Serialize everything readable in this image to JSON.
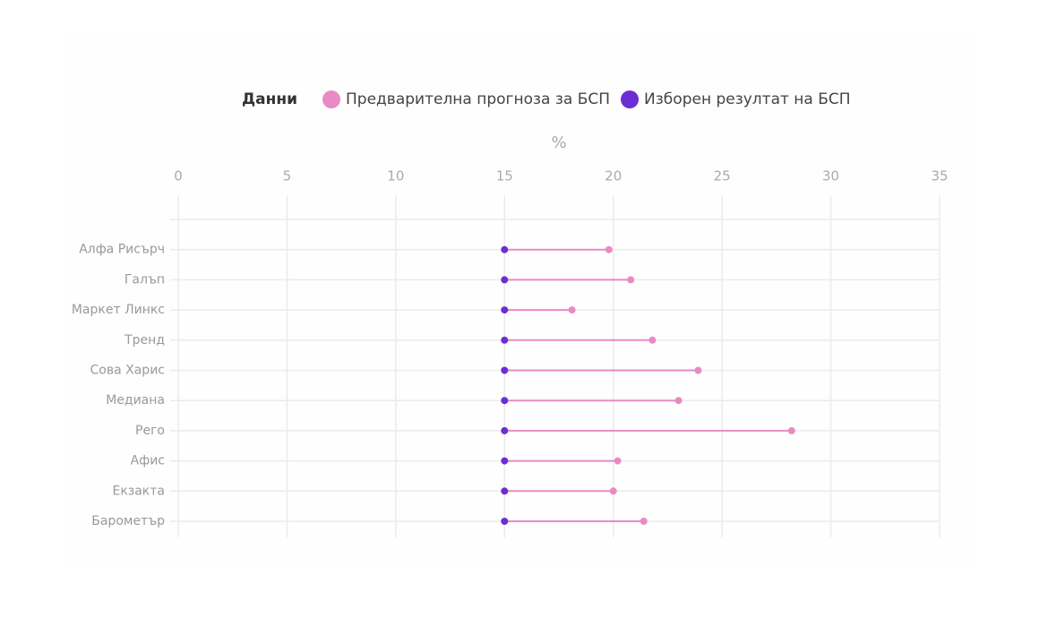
{
  "chart_data": {
    "type": "dumbbell",
    "legend_title": "Данни",
    "x_label": "%",
    "categories": [
      null,
      "Алфа Рисърч",
      "Галъп",
      "Маркет Линкс",
      "Тренд",
      "Сова Харис",
      "Медиана",
      "Рего",
      "Афис",
      "Екзакта",
      "Барометър"
    ],
    "series": [
      {
        "name": "Предварителна прогноза за БСП",
        "color": "#e88bc4",
        "values": [
          null,
          19.8,
          20.8,
          18.1,
          21.8,
          23.9,
          23.0,
          28.2,
          20.2,
          20.0,
          21.4
        ]
      },
      {
        "name": "Изборен резултат на БСП",
        "color": "#6a2fd4",
        "values": [
          null,
          15,
          15,
          15,
          15,
          15,
          15,
          15,
          15,
          15,
          15
        ]
      }
    ],
    "xlim": [
      0,
      35
    ],
    "xticks": [
      0,
      5,
      10,
      15,
      20,
      25,
      30,
      35
    ],
    "grid": true
  }
}
